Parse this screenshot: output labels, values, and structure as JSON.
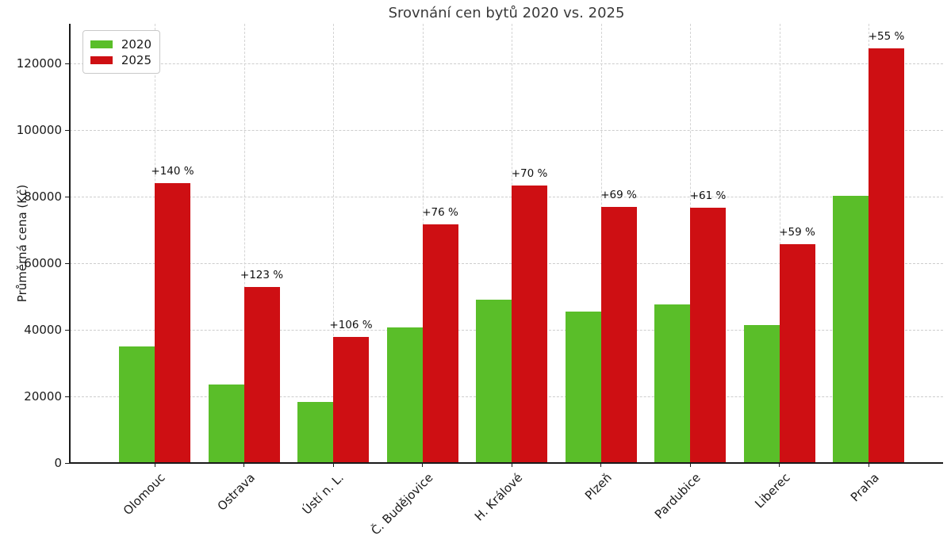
{
  "chart_data": {
    "type": "bar",
    "title": "Srovnání cen bytů 2020 vs. 2025",
    "ylabel": "Průměrná cena (Kč)",
    "xlabel": "",
    "categories": [
      "Olomouc",
      "Ostrava",
      "Ústí n. L.",
      "Č. Budějovice",
      "H. Králové",
      "Plzeň",
      "Pardubice",
      "Liberec",
      "Praha"
    ],
    "series": [
      {
        "name": "2020",
        "color": "#5abe29",
        "values": [
          35000,
          23700,
          18400,
          40700,
          49000,
          45600,
          47700,
          41400,
          80300
        ]
      },
      {
        "name": "2025",
        "color": "#ce0f13",
        "values": [
          84000,
          52900,
          37900,
          71600,
          83300,
          77000,
          76800,
          65800,
          124500
        ]
      }
    ],
    "pct_labels": [
      "+140 %",
      "+123 %",
      "+106 %",
      "+76 %",
      "+70 %",
      "+69 %",
      "+61 %",
      "+59 %",
      "+55 %"
    ],
    "yticks": [
      0,
      20000,
      40000,
      60000,
      80000,
      100000,
      120000
    ],
    "ylim": [
      0,
      132000
    ],
    "grid": "dashed-both-axes",
    "legend_position": "upper-left",
    "colors": {
      "grid": "#cdcdcd",
      "axis": "#1a1a1a",
      "title_text": "#3a3a3a"
    }
  }
}
